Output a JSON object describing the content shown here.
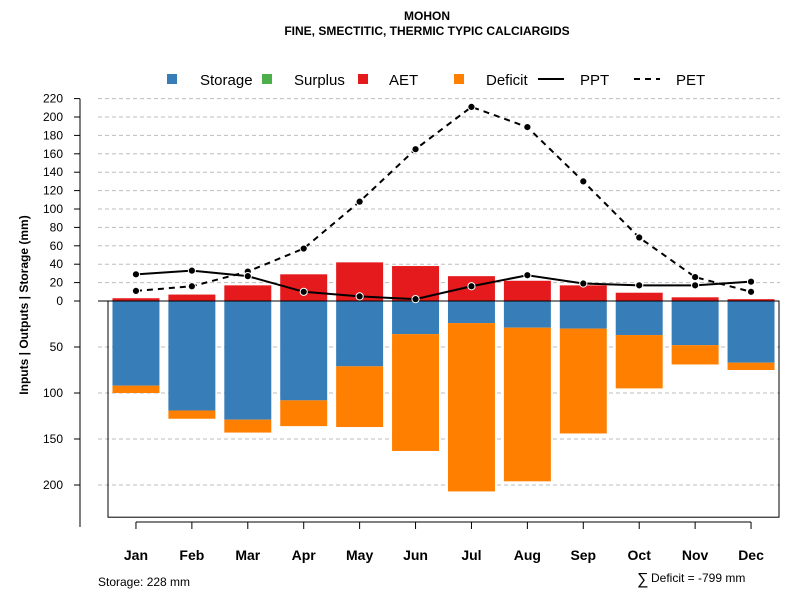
{
  "chart_data": {
    "type": "bar",
    "title": "MOHON",
    "subtitle": "FINE, SMECTITIC, THERMIC TYPIC CALCIARGIDS",
    "ylabel": "Inputs | Outputs | Storage     (mm)",
    "categories": [
      "Jan",
      "Feb",
      "Mar",
      "Apr",
      "May",
      "Jun",
      "Jul",
      "Aug",
      "Sep",
      "Oct",
      "Nov",
      "Dec"
    ],
    "upper_ylim": [
      0,
      220
    ],
    "upper_ticks": [
      0,
      20,
      40,
      60,
      80,
      100,
      120,
      140,
      160,
      180,
      200,
      220
    ],
    "lower_ylim": [
      0,
      235
    ],
    "lower_ticks": [
      50,
      100,
      150,
      200
    ],
    "lower_tick_labels": [
      "50",
      "100",
      "150",
      "200"
    ],
    "legend": [
      {
        "name": "Storage",
        "kind": "box",
        "color": "#377EB8"
      },
      {
        "name": "Surplus",
        "kind": "box",
        "color": "#4DAF4A"
      },
      {
        "name": "AET",
        "kind": "box",
        "color": "#E41A1C"
      },
      {
        "name": "Deficit",
        "kind": "box",
        "color": "#FF7F00"
      },
      {
        "name": "PPT",
        "kind": "solid",
        "color": "#000000"
      },
      {
        "name": "PET",
        "kind": "dashed",
        "color": "#000000"
      }
    ],
    "series": [
      {
        "name": "AET",
        "color": "#E41A1C",
        "values": [
          3,
          7,
          17,
          29,
          42,
          38,
          27,
          22,
          17,
          9,
          4,
          2
        ]
      },
      {
        "name": "Storage",
        "color": "#377EB8",
        "values": [
          92,
          119,
          129,
          108,
          71,
          36,
          24,
          29,
          30,
          37,
          48,
          67
        ]
      },
      {
        "name": "Deficit",
        "color": "#FF7F00",
        "values": [
          8,
          9,
          14,
          28,
          66,
          127,
          183,
          167,
          114,
          58,
          21,
          8
        ]
      },
      {
        "name": "Surplus",
        "color": "#4DAF4A",
        "values": [
          0,
          0,
          0,
          0,
          0,
          0,
          0,
          0,
          0,
          0,
          0,
          0
        ]
      },
      {
        "name": "PPT",
        "color": "#000000",
        "values": [
          29,
          33,
          27,
          10,
          5,
          2,
          16,
          28,
          19,
          17,
          17,
          21
        ]
      },
      {
        "name": "PET",
        "color": "#000000",
        "values": [
          11,
          16,
          32,
          57,
          108,
          165,
          211,
          189,
          130,
          69,
          26,
          10
        ]
      }
    ]
  },
  "footer": {
    "storage": "Storage: 228 mm",
    "deficit_symbol": "∑",
    "deficit": "Deficit = -799 mm"
  }
}
